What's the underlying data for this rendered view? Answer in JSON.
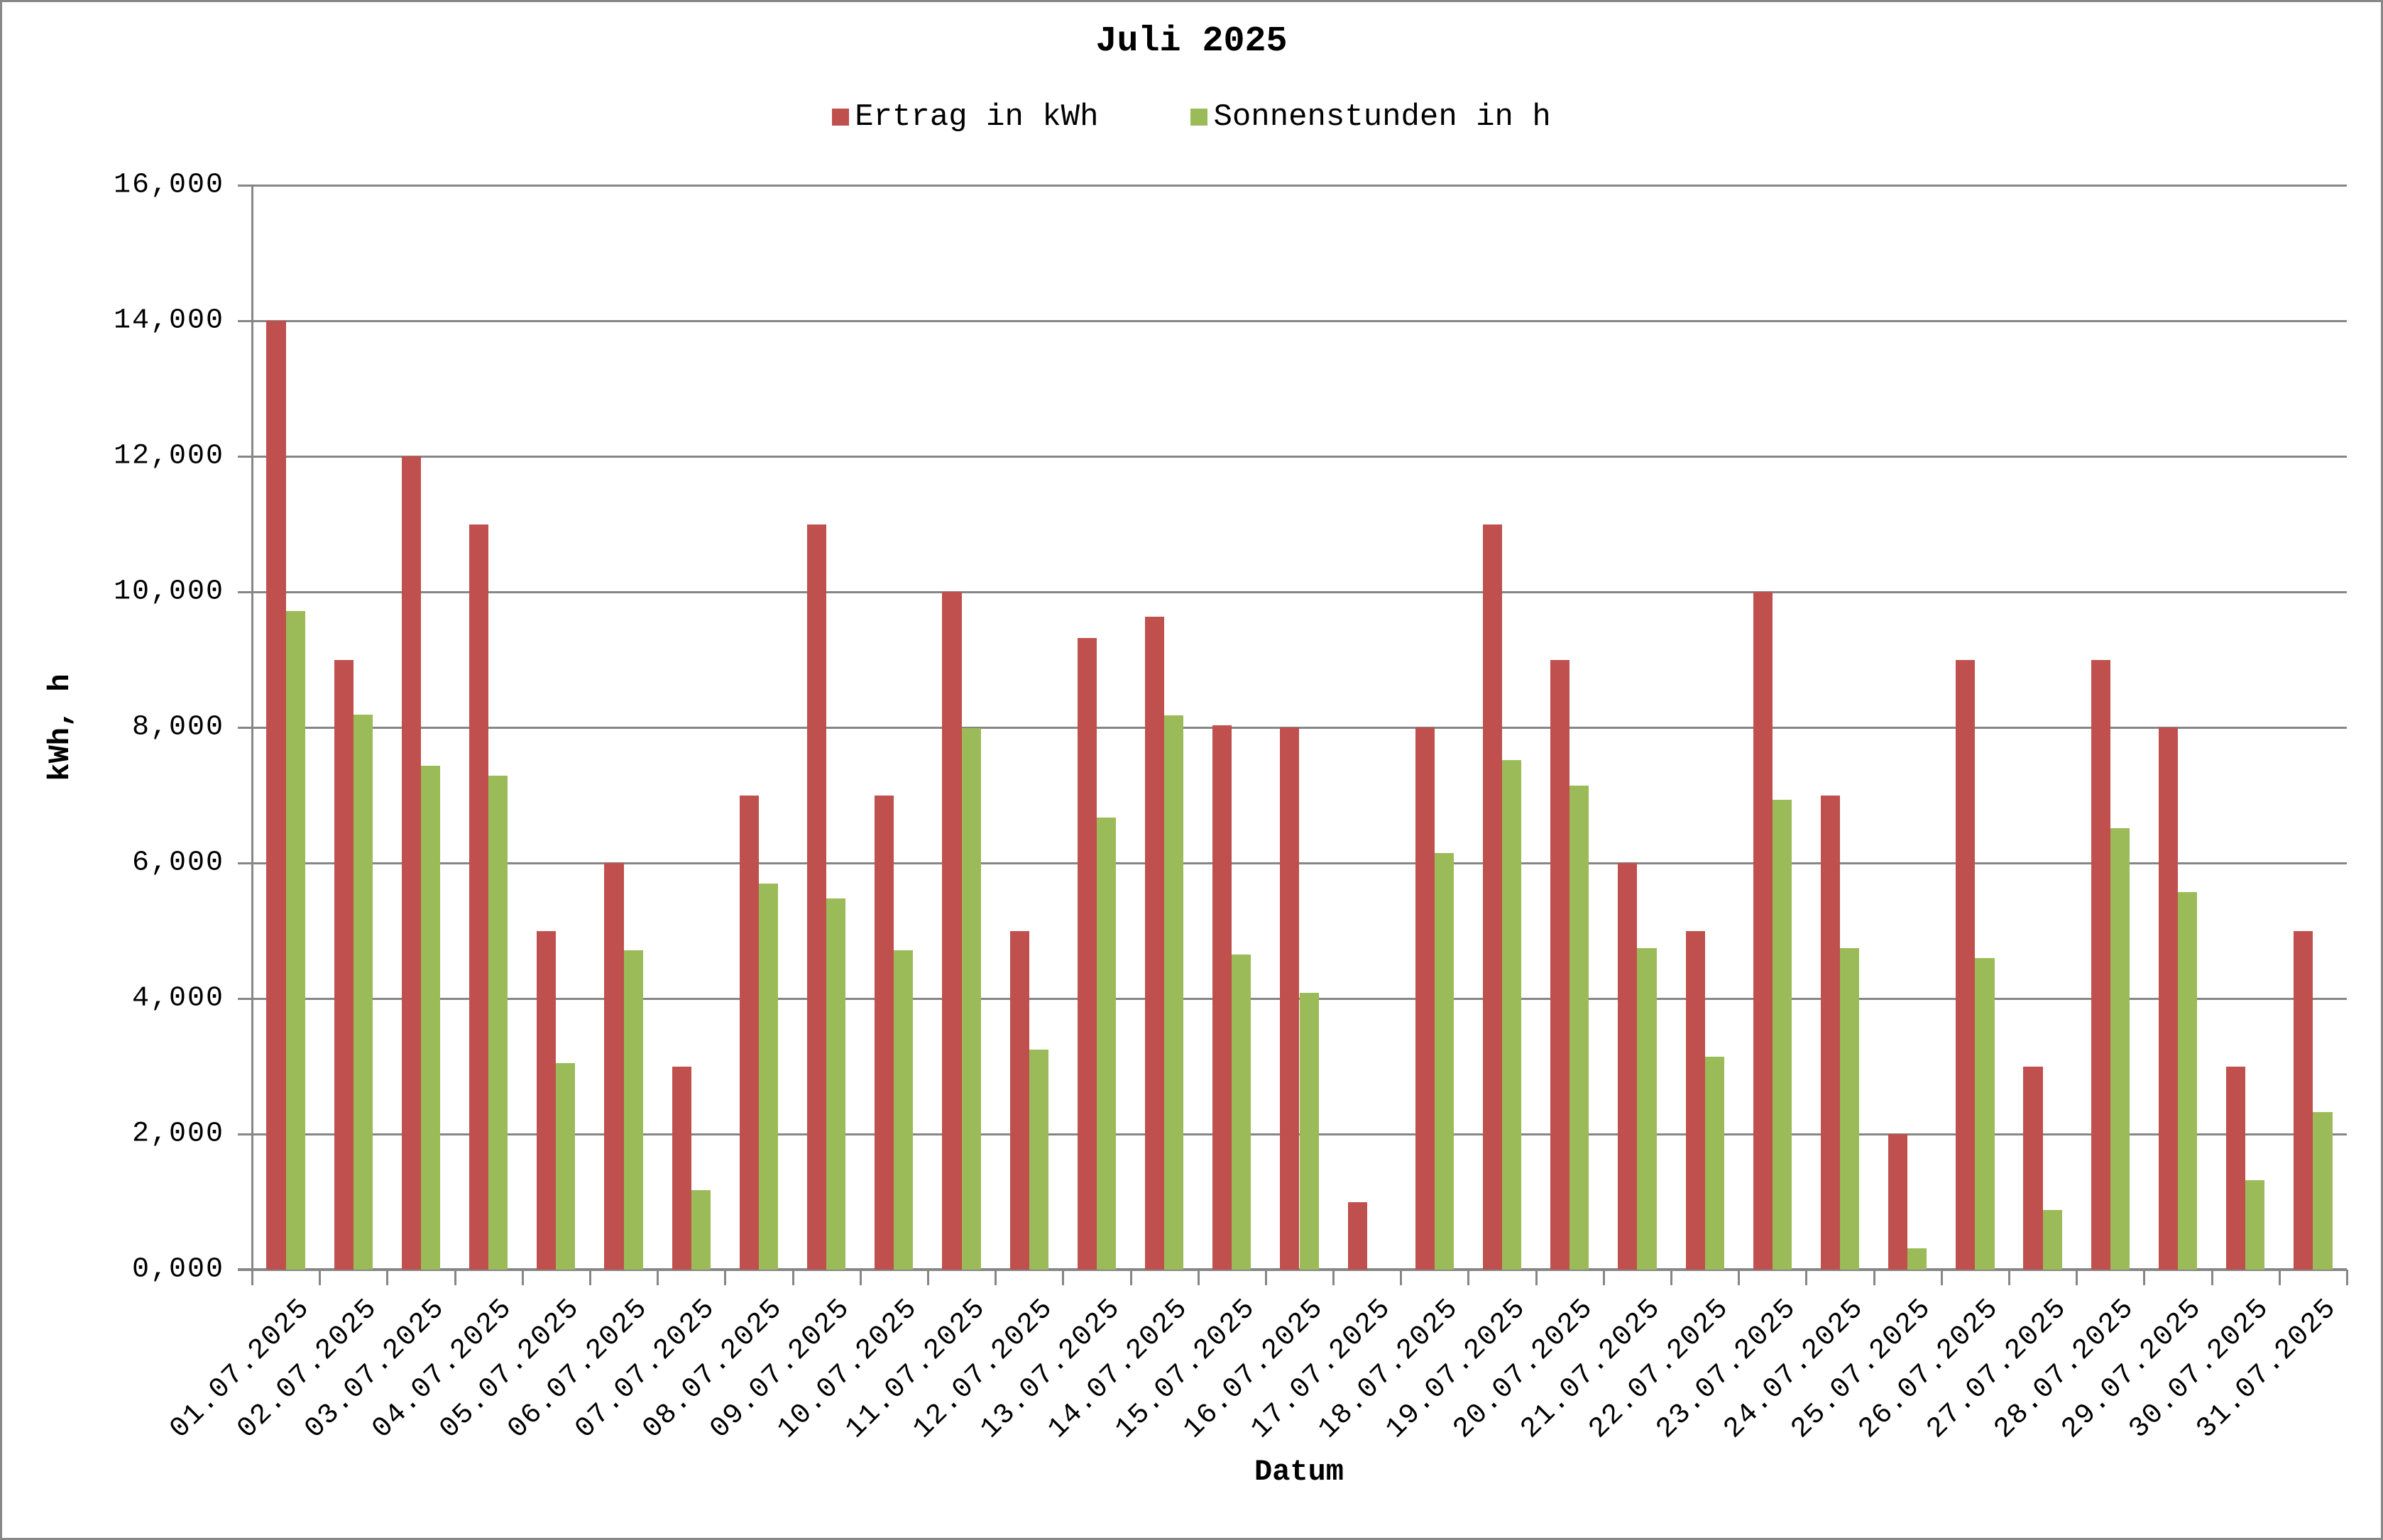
{
  "chart_data": {
    "type": "bar",
    "title": "Juli 2025",
    "xlabel": "Datum",
    "ylabel": "kWh, h",
    "ylim": [
      0,
      16
    ],
    "yticks": [
      "0,000",
      "2,000",
      "4,000",
      "6,000",
      "8,000",
      "10,000",
      "12,000",
      "14,000",
      "16,000"
    ],
    "grid": true,
    "legend_position": "top",
    "categories": [
      "01.07.2025",
      "02.07.2025",
      "03.07.2025",
      "04.07.2025",
      "05.07.2025",
      "06.07.2025",
      "07.07.2025",
      "08.07.2025",
      "09.07.2025",
      "10.07.2025",
      "11.07.2025",
      "12.07.2025",
      "13.07.2025",
      "14.07.2025",
      "15.07.2025",
      "16.07.2025",
      "17.07.2025",
      "18.07.2025",
      "19.07.2025",
      "20.07.2025",
      "21.07.2025",
      "22.07.2025",
      "23.07.2025",
      "24.07.2025",
      "25.07.2025",
      "26.07.2025",
      "27.07.2025",
      "28.07.2025",
      "29.07.2025",
      "30.07.2025",
      "31.07.2025"
    ],
    "series": [
      {
        "name": "Ertrag in kWh",
        "color": "#C0504D",
        "values": [
          14.0,
          9.0,
          12.0,
          11.0,
          5.0,
          6.0,
          3.0,
          7.0,
          11.0,
          7.0,
          10.0,
          5.0,
          9.32,
          9.63,
          8.03,
          8.0,
          1.0,
          8.0,
          11.0,
          9.0,
          6.0,
          5.0,
          10.0,
          7.0,
          2.0,
          9.0,
          3.0,
          9.0,
          8.0,
          3.0,
          5.0
        ]
      },
      {
        "name": "Sonnenstunden in h",
        "color": "#9BBB59",
        "values": [
          9.72,
          8.19,
          7.43,
          7.29,
          3.05,
          4.71,
          1.17,
          5.7,
          5.48,
          4.71,
          7.99,
          3.25,
          6.67,
          8.18,
          4.65,
          4.08,
          0.0,
          6.15,
          7.52,
          7.14,
          4.74,
          3.14,
          6.93,
          4.74,
          0.31,
          4.6,
          0.88,
          6.51,
          5.57,
          1.32,
          2.33
        ]
      }
    ]
  },
  "legend": {
    "items": [
      {
        "label": "Ertrag in kWh",
        "color": "#C0504D"
      },
      {
        "label": "Sonnenstunden in h",
        "color": "#9BBB59"
      }
    ]
  }
}
